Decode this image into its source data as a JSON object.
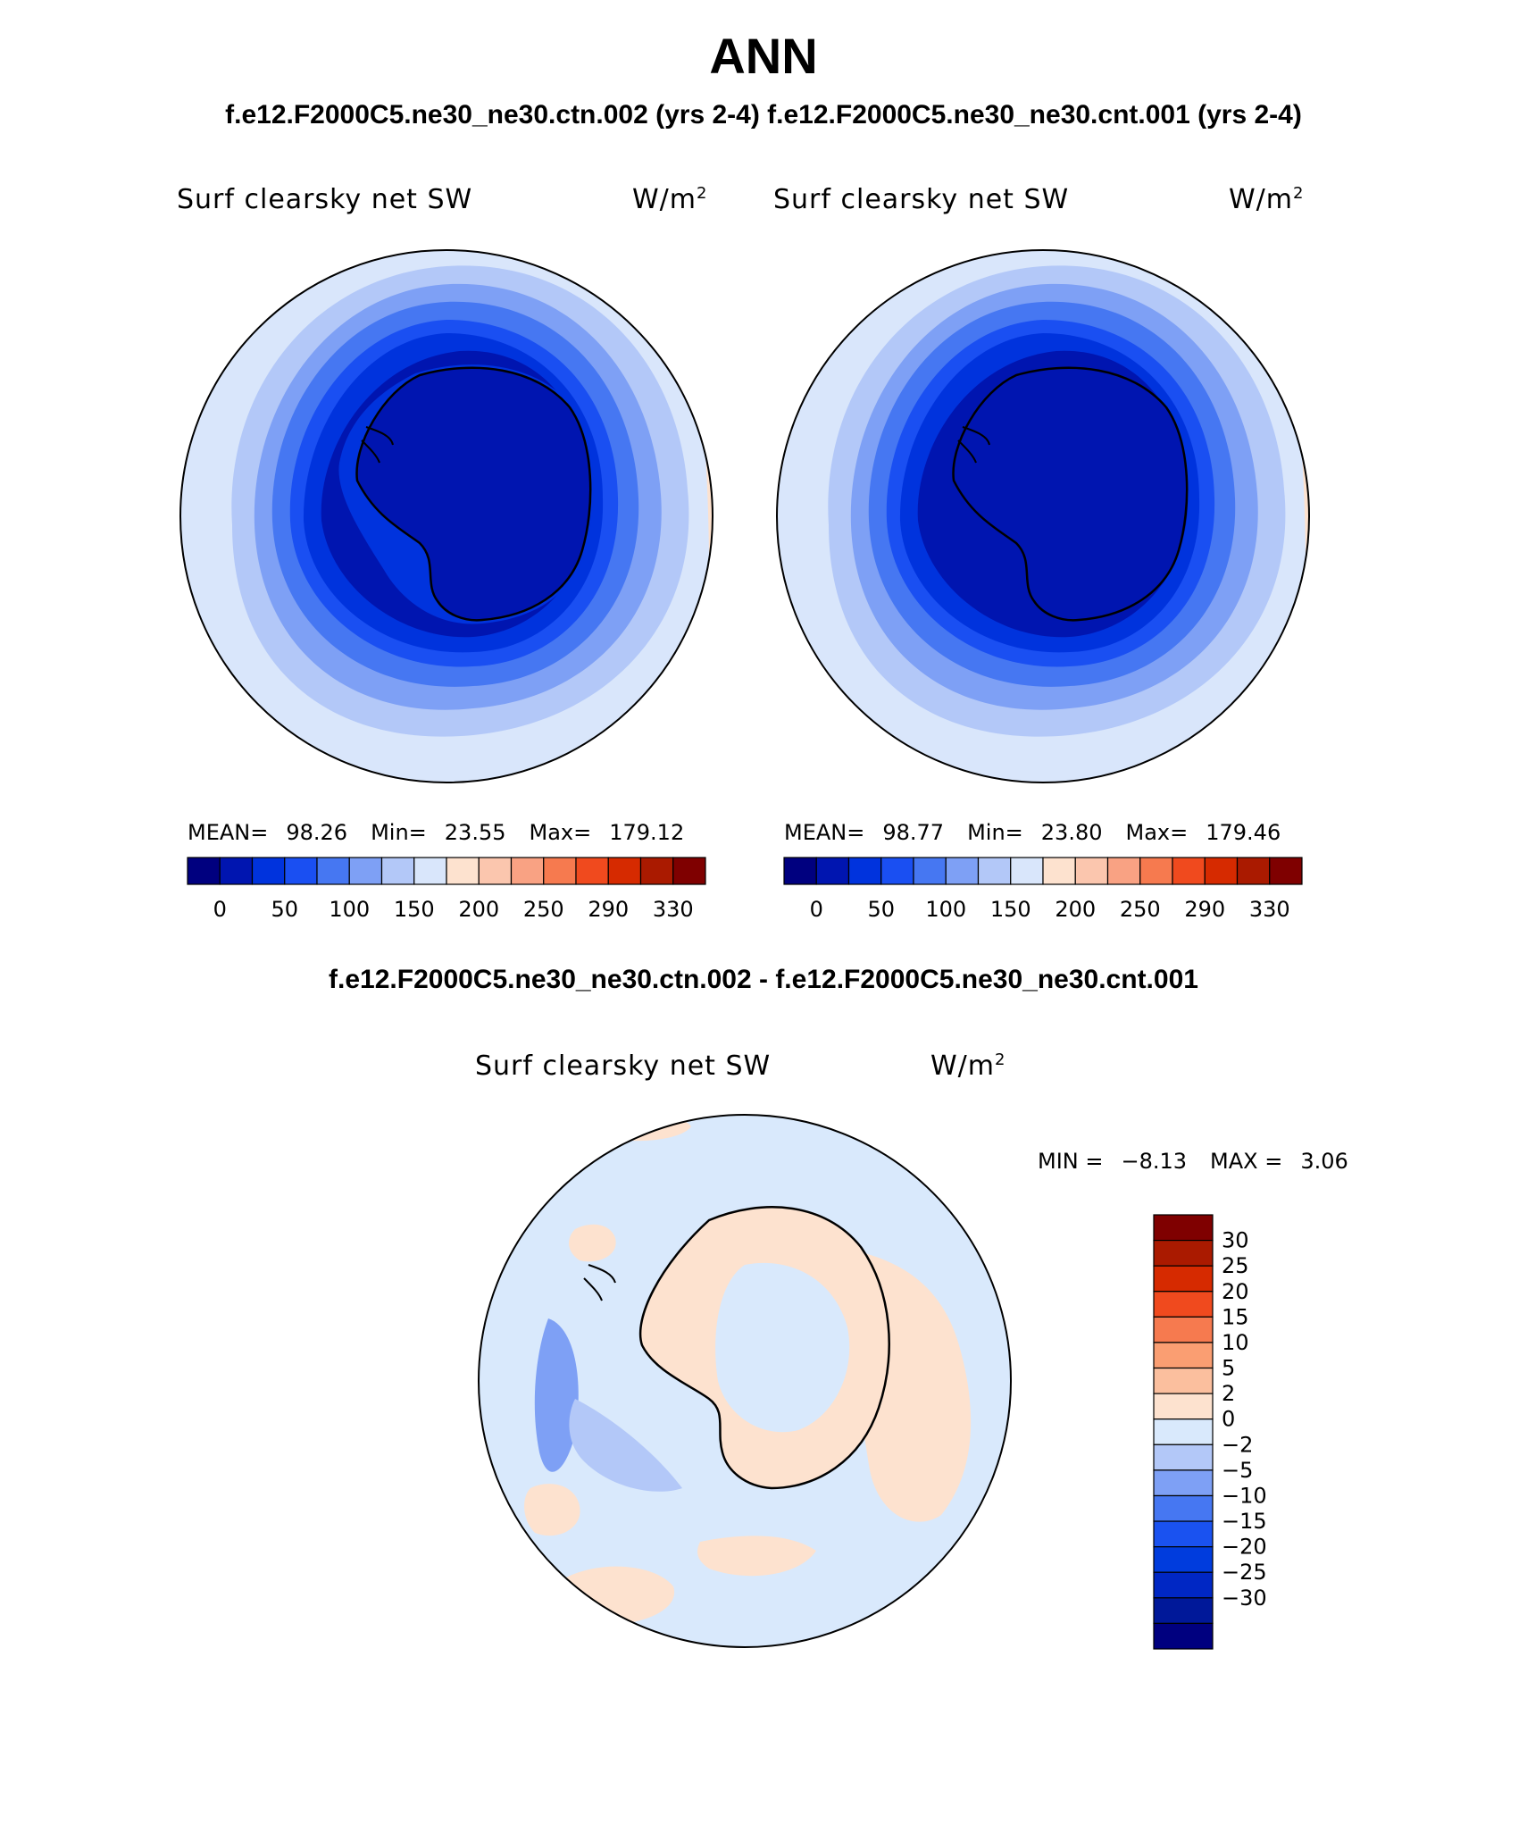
{
  "title": "ANN",
  "subtitle": "f.e12.F2000C5.ne30_ne30.ctn.002 (yrs 2-4) f.e12.F2000C5.ne30_ne30.cnt.001 (yrs 2-4)",
  "colors": {
    "abs_scale": [
      "#00007f",
      "#0015b0",
      "#0033dd",
      "#1a4ff2",
      "#4677f2",
      "#7ea0f5",
      "#b3c8f8",
      "#d9e6fb",
      "#fde2cf",
      "#fbc6ae",
      "#f9a283",
      "#f67a4f",
      "#f04a1e",
      "#d62a00",
      "#aa1a00",
      "#7f0000"
    ],
    "diff_scale": [
      "#00007f",
      "#001899",
      "#0027c4",
      "#003cdd",
      "#1a52f0",
      "#4677f2",
      "#7ea0f5",
      "#b3c8f8",
      "#d9e9fc",
      "#fde2cf",
      "#fbbf9e",
      "#fa9e72",
      "#f67a4f",
      "#f04a1e",
      "#d62a00",
      "#aa1a00",
      "#7f0000"
    ]
  },
  "panels": [
    {
      "field": "Surf clearsky net SW",
      "units": "W/m",
      "units_exp": "2",
      "mean_label": "MEAN=",
      "mean": "98.26",
      "min_label": "Min=",
      "min": "23.55",
      "max_label": "Max=",
      "max": "179.12",
      "colorbar_ticks": [
        "0",
        "50",
        "100",
        "150",
        "200",
        "250",
        "290",
        "330"
      ]
    },
    {
      "field": "Surf clearsky net SW",
      "units": "W/m",
      "units_exp": "2",
      "mean_label": "MEAN=",
      "mean": "98.77",
      "min_label": "Min=",
      "min": "23.80",
      "max_label": "Max=",
      "max": "179.46",
      "colorbar_ticks": [
        "0",
        "50",
        "100",
        "150",
        "200",
        "250",
        "290",
        "330"
      ]
    }
  ],
  "difference": {
    "title": "f.e12.F2000C5.ne30_ne30.ctn.002 - f.e12.F2000C5.ne30_ne30.cnt.001",
    "field": "Surf clearsky net SW",
    "units": "W/m",
    "units_exp": "2",
    "min_label": "MIN =",
    "min": "−8.13",
    "max_label": "MAX =",
    "max": "3.06",
    "colorbar_ticks": [
      "30",
      "25",
      "20",
      "15",
      "10",
      "5",
      "2",
      "0",
      "−2",
      "−5",
      "−10",
      "−15",
      "−20",
      "−25",
      "−30"
    ]
  }
}
